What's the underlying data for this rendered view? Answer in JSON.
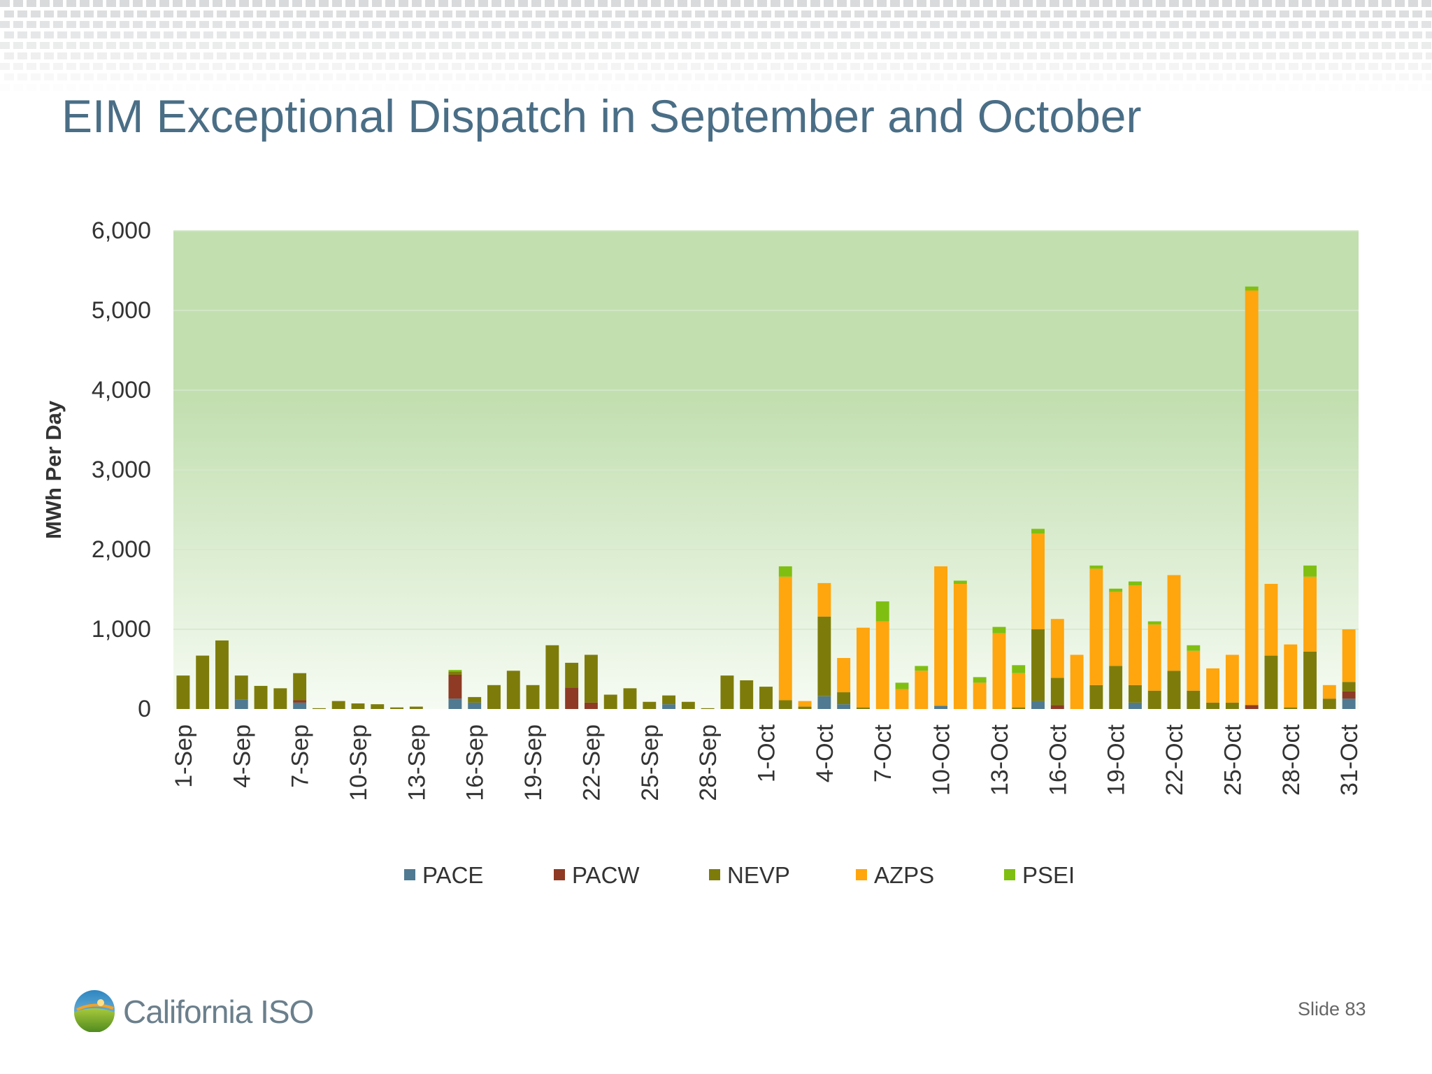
{
  "slide": {
    "title": "EIM Exceptional Dispatch in September and October",
    "logo_text": "California ISO",
    "slide_number": "Slide 83"
  },
  "colors": {
    "title": "#4a6e86",
    "plot_top": "#c2dfb0",
    "plot_bottom": "#f6fbf3"
  },
  "chart_data": {
    "type": "bar",
    "stacked": true,
    "title": "",
    "xlabel": "",
    "ylabel": "MWh Per Day",
    "ylim": [
      0,
      6000
    ],
    "yticks": [
      0,
      1000,
      2000,
      3000,
      4000,
      5000,
      6000
    ],
    "ytick_labels": [
      "0",
      "1,000",
      "2,000",
      "3,000",
      "4,000",
      "5,000",
      "6,000"
    ],
    "grid": true,
    "legend_position": "bottom",
    "categories": [
      "1-Sep",
      "2-Sep",
      "3-Sep",
      "4-Sep",
      "5-Sep",
      "6-Sep",
      "7-Sep",
      "8-Sep",
      "9-Sep",
      "10-Sep",
      "11-Sep",
      "12-Sep",
      "13-Sep",
      "14-Sep",
      "15-Sep",
      "16-Sep",
      "17-Sep",
      "18-Sep",
      "19-Sep",
      "20-Sep",
      "21-Sep",
      "22-Sep",
      "23-Sep",
      "24-Sep",
      "25-Sep",
      "26-Sep",
      "27-Sep",
      "28-Sep",
      "29-Sep",
      "30-Sep",
      "1-Oct",
      "2-Oct",
      "3-Oct",
      "4-Oct",
      "5-Oct",
      "6-Oct",
      "7-Oct",
      "8-Oct",
      "9-Oct",
      "10-Oct",
      "11-Oct",
      "12-Oct",
      "13-Oct",
      "14-Oct",
      "15-Oct",
      "16-Oct",
      "17-Oct",
      "18-Oct",
      "19-Oct",
      "20-Oct",
      "21-Oct",
      "22-Oct",
      "23-Oct",
      "24-Oct",
      "25-Oct",
      "26-Oct",
      "27-Oct",
      "28-Oct",
      "29-Oct",
      "30-Oct",
      "31-Oct"
    ],
    "xtick_labels": [
      "1-Sep",
      "4-Sep",
      "7-Sep",
      "10-Sep",
      "13-Sep",
      "16-Sep",
      "19-Sep",
      "22-Sep",
      "25-Sep",
      "28-Sep",
      "1-Oct",
      "4-Oct",
      "7-Oct",
      "10-Oct",
      "13-Oct",
      "16-Oct",
      "19-Oct",
      "22-Oct",
      "25-Oct",
      "28-Oct",
      "31-Oct"
    ],
    "series": [
      {
        "name": "PACE",
        "color": "#4f7a91",
        "values": [
          0,
          0,
          0,
          120,
          0,
          0,
          80,
          0,
          0,
          0,
          0,
          0,
          0,
          0,
          130,
          80,
          0,
          0,
          0,
          0,
          0,
          0,
          0,
          0,
          0,
          60,
          0,
          0,
          0,
          0,
          0,
          0,
          0,
          160,
          60,
          0,
          0,
          0,
          0,
          40,
          0,
          0,
          0,
          0,
          100,
          0,
          0,
          0,
          0,
          80,
          0,
          0,
          0,
          0,
          0,
          0,
          0,
          0,
          0,
          0,
          130
        ]
      },
      {
        "name": "PACW",
        "color": "#8e3a24",
        "values": [
          0,
          0,
          0,
          0,
          0,
          0,
          30,
          0,
          0,
          0,
          0,
          0,
          0,
          0,
          300,
          0,
          0,
          0,
          0,
          0,
          270,
          80,
          0,
          0,
          0,
          0,
          0,
          0,
          0,
          0,
          0,
          0,
          0,
          0,
          0,
          0,
          0,
          0,
          0,
          0,
          0,
          0,
          0,
          0,
          0,
          50,
          0,
          0,
          0,
          0,
          0,
          0,
          0,
          0,
          0,
          50,
          0,
          0,
          0,
          0,
          90
        ]
      },
      {
        "name": "NEVP",
        "color": "#7d7c0b",
        "values": [
          420,
          670,
          860,
          300,
          290,
          260,
          340,
          10,
          100,
          70,
          60,
          20,
          30,
          0,
          40,
          70,
          300,
          480,
          300,
          800,
          310,
          600,
          180,
          260,
          90,
          110,
          90,
          10,
          420,
          360,
          280,
          110,
          30,
          1000,
          150,
          20,
          0,
          0,
          0,
          0,
          0,
          0,
          0,
          20,
          900,
          340,
          0,
          300,
          540,
          220,
          230,
          480,
          230,
          80,
          80,
          0,
          670,
          20,
          720,
          130,
          120
        ]
      },
      {
        "name": "AZPS",
        "color": "#ffa50e",
        "values": [
          0,
          0,
          0,
          0,
          0,
          0,
          0,
          0,
          0,
          0,
          0,
          0,
          0,
          0,
          0,
          0,
          0,
          0,
          0,
          0,
          0,
          0,
          0,
          0,
          0,
          0,
          0,
          0,
          0,
          0,
          0,
          1550,
          70,
          420,
          430,
          1000,
          1100,
          250,
          480,
          1750,
          1570,
          330,
          950,
          430,
          1200,
          740,
          680,
          1460,
          930,
          1250,
          830,
          1200,
          500,
          430,
          600,
          5200,
          900,
          790,
          940,
          170,
          660
        ]
      },
      {
        "name": "PSEI",
        "color": "#7fbf12",
        "values": [
          0,
          0,
          0,
          0,
          0,
          0,
          0,
          0,
          0,
          0,
          0,
          0,
          0,
          0,
          20,
          0,
          0,
          0,
          0,
          0,
          0,
          0,
          0,
          0,
          0,
          0,
          0,
          0,
          0,
          0,
          0,
          130,
          0,
          0,
          0,
          0,
          250,
          80,
          60,
          0,
          40,
          70,
          80,
          100,
          60,
          0,
          0,
          40,
          40,
          50,
          40,
          0,
          70,
          0,
          0,
          50,
          0,
          0,
          140,
          0,
          0
        ]
      }
    ]
  }
}
